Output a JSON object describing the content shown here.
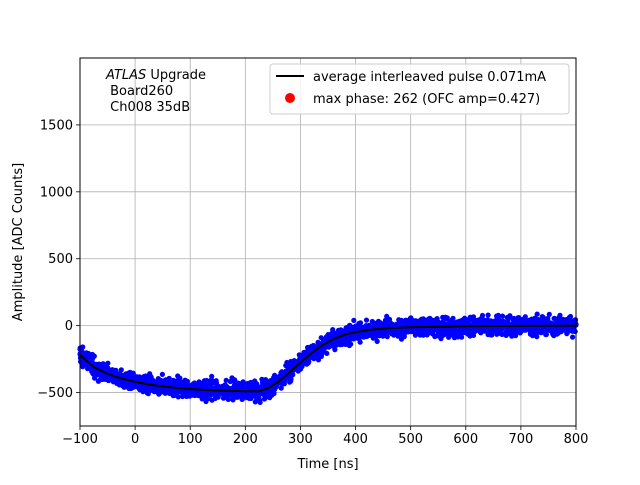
{
  "chart_data": {
    "type": "scatter",
    "title": "",
    "xlabel": "Time [ns]",
    "ylabel": "Amplitude [ADC Counts]",
    "xlim": [
      -100,
      800
    ],
    "ylim": [
      -750,
      2000
    ],
    "xticks": [
      -100,
      0,
      100,
      200,
      300,
      400,
      500,
      600,
      700,
      800
    ],
    "yticks": [
      -500,
      0,
      500,
      1000,
      1500
    ],
    "xtick_labels": [
      "−100",
      "0",
      "100",
      "200",
      "300",
      "400",
      "500",
      "600",
      "700",
      "800"
    ],
    "ytick_labels": [
      "−500",
      "0",
      "500",
      "1000",
      "1500"
    ],
    "grid": true,
    "annotation": {
      "italic": "ATLAS",
      "rest": " Upgrade",
      "line2": " Board260",
      "line3": " Ch008 35dB"
    },
    "legend": {
      "position": "top-right",
      "entries": [
        {
          "label": "average interleaved pulse 0.071mA",
          "marker": "line",
          "color": "#000000"
        },
        {
          "label": "max phase: 262 (OFC amp=0.427)",
          "marker": "dot",
          "color": "#ff0000"
        }
      ]
    },
    "series": [
      {
        "name": "average interleaved pulse 0.071mA",
        "kind": "line",
        "color": "#000000",
        "x": [
          -100,
          -75,
          -50,
          -25,
          0,
          25,
          50,
          75,
          100,
          125,
          150,
          175,
          200,
          225,
          240,
          260,
          280,
          300,
          320,
          340,
          360,
          380,
          400,
          425,
          450,
          475,
          500,
          550,
          600,
          650,
          700,
          750,
          800
        ],
        "y": [
          -220,
          -310,
          -360,
          -395,
          -420,
          -440,
          -455,
          -465,
          -473,
          -480,
          -485,
          -488,
          -490,
          -490,
          -470,
          -420,
          -350,
          -275,
          -205,
          -145,
          -100,
          -68,
          -48,
          -32,
          -22,
          -16,
          -12,
          -8,
          -5,
          -3,
          -2,
          -1,
          0
        ]
      },
      {
        "name": "",
        "kind": "scatter",
        "color": "#0000ff",
        "spread": 60
      }
    ]
  }
}
